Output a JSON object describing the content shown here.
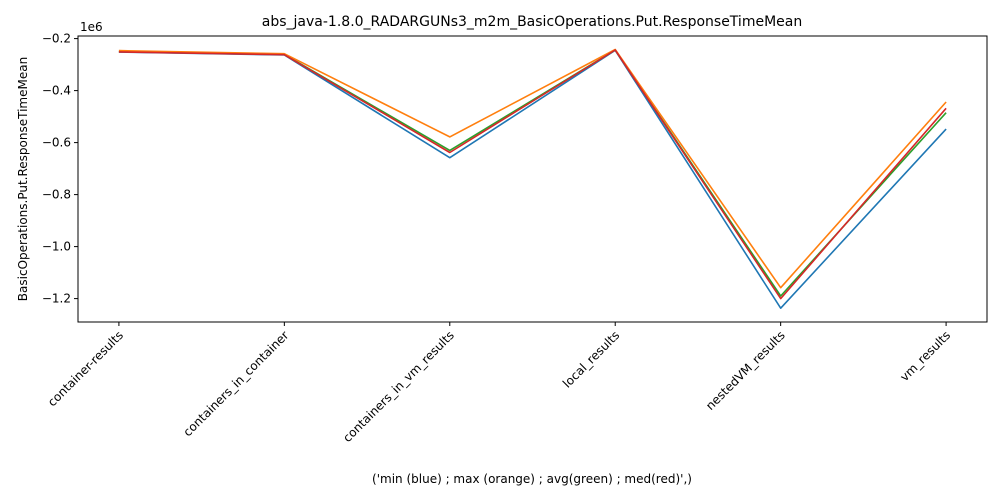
{
  "chart_data": {
    "type": "line",
    "title": "abs_java-1.8.0_RADARGUNs3_m2m_BasicOperations.Put.ResponseTimeMean",
    "xlabel": "('min (blue) ; max (orange) ; avg(green) ; med(red)',)",
    "ylabel": "BasicOperations.Put.ResponseTimeMean",
    "y_offset_label": "1e6",
    "y_scale_factor": 1000000,
    "categories": [
      "container-results",
      "containers_in_container",
      "containers_in_vm_results",
      "local_results",
      "nestedVM_results",
      "vm_results"
    ],
    "ylim": [
      -1.29,
      -0.19
    ],
    "yticks": [
      -1.2,
      -1.0,
      -0.8,
      -0.6,
      -0.4,
      -0.2
    ],
    "ytick_labels": [
      "−1.2",
      "−1.0",
      "−0.8",
      "−0.6",
      "−0.4",
      "−0.2"
    ],
    "grid": false,
    "series": [
      {
        "key": "min",
        "color": "#1f77b4",
        "values": [
          -0.252,
          -0.263,
          -0.658,
          -0.245,
          -1.237,
          -0.548
        ]
      },
      {
        "key": "avg",
        "color": "#2ca02c",
        "values": [
          -0.25,
          -0.261,
          -0.63,
          -0.244,
          -1.19,
          -0.485
        ]
      },
      {
        "key": "max",
        "color": "#ff7f0e",
        "values": [
          -0.246,
          -0.258,
          -0.578,
          -0.242,
          -1.158,
          -0.444
        ]
      },
      {
        "key": "med",
        "color": "#d62728",
        "values": [
          -0.251,
          -0.262,
          -0.638,
          -0.244,
          -1.2,
          -0.468
        ]
      }
    ]
  }
}
